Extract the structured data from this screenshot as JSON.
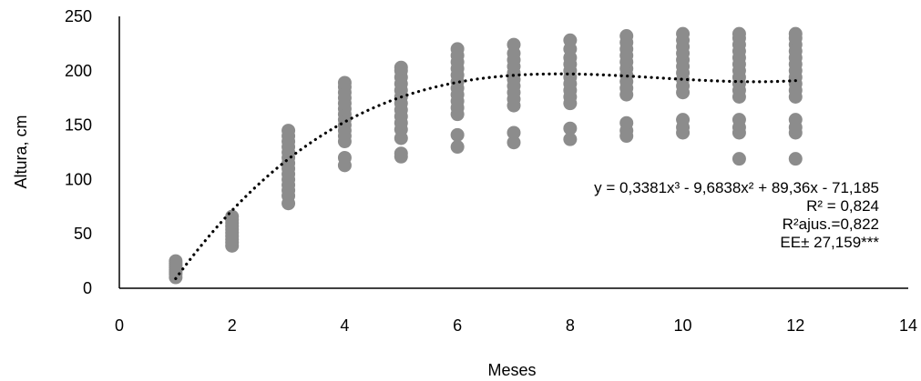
{
  "chart_data": {
    "type": "scatter",
    "xlabel": "Meses",
    "ylabel": "Altura, cm",
    "xlim": [
      0,
      14
    ],
    "ylim": [
      0,
      250
    ],
    "x_ticks": [
      0,
      2,
      4,
      6,
      8,
      10,
      12,
      14
    ],
    "y_ticks": [
      0,
      50,
      100,
      150,
      200,
      250
    ],
    "grid": false,
    "point_color": "#8c8c8c",
    "series": [
      {
        "points": [
          [
            1,
            10
          ],
          [
            1,
            13
          ],
          [
            1,
            15
          ],
          [
            1,
            17
          ],
          [
            1,
            19
          ],
          [
            1,
            21
          ],
          [
            1,
            23
          ],
          [
            1,
            25
          ],
          [
            2,
            39
          ],
          [
            2,
            42
          ],
          [
            2,
            45
          ],
          [
            2,
            48
          ],
          [
            2,
            51
          ],
          [
            2,
            54
          ],
          [
            2,
            57
          ],
          [
            2,
            60
          ],
          [
            2,
            63
          ],
          [
            2,
            66
          ],
          [
            3,
            78
          ],
          [
            3,
            85
          ],
          [
            3,
            90
          ],
          [
            3,
            95
          ],
          [
            3,
            100
          ],
          [
            3,
            105
          ],
          [
            3,
            110
          ],
          [
            3,
            115
          ],
          [
            3,
            120
          ],
          [
            3,
            125
          ],
          [
            3,
            130
          ],
          [
            3,
            135
          ],
          [
            3,
            140
          ],
          [
            3,
            145
          ],
          [
            4,
            113
          ],
          [
            4,
            120
          ],
          [
            4,
            135
          ],
          [
            4,
            140
          ],
          [
            4,
            145
          ],
          [
            4,
            150
          ],
          [
            4,
            155
          ],
          [
            4,
            160
          ],
          [
            4,
            165
          ],
          [
            4,
            170
          ],
          [
            4,
            175
          ],
          [
            4,
            180
          ],
          [
            4,
            185
          ],
          [
            4,
            189
          ],
          [
            5,
            121
          ],
          [
            5,
            124
          ],
          [
            5,
            138
          ],
          [
            5,
            146
          ],
          [
            5,
            152
          ],
          [
            5,
            158
          ],
          [
            5,
            164
          ],
          [
            5,
            170
          ],
          [
            5,
            176
          ],
          [
            5,
            182
          ],
          [
            5,
            188
          ],
          [
            5,
            194
          ],
          [
            5,
            200
          ],
          [
            5,
            203
          ],
          [
            6,
            130
          ],
          [
            6,
            141
          ],
          [
            6,
            160
          ],
          [
            6,
            166
          ],
          [
            6,
            172
          ],
          [
            6,
            178
          ],
          [
            6,
            184
          ],
          [
            6,
            190
          ],
          [
            6,
            196
          ],
          [
            6,
            202
          ],
          [
            6,
            208
          ],
          [
            6,
            214
          ],
          [
            6,
            220
          ],
          [
            7,
            134
          ],
          [
            7,
            143
          ],
          [
            7,
            168
          ],
          [
            7,
            174
          ],
          [
            7,
            180
          ],
          [
            7,
            186
          ],
          [
            7,
            192
          ],
          [
            7,
            198
          ],
          [
            7,
            204
          ],
          [
            7,
            210
          ],
          [
            7,
            216
          ],
          [
            7,
            224
          ],
          [
            8,
            137
          ],
          [
            8,
            147
          ],
          [
            8,
            170
          ],
          [
            8,
            176
          ],
          [
            8,
            182
          ],
          [
            8,
            188
          ],
          [
            8,
            194
          ],
          [
            8,
            200
          ],
          [
            8,
            206
          ],
          [
            8,
            212
          ],
          [
            8,
            220
          ],
          [
            8,
            228
          ],
          [
            9,
            140
          ],
          [
            9,
            145
          ],
          [
            9,
            152
          ],
          [
            9,
            178
          ],
          [
            9,
            184
          ],
          [
            9,
            190
          ],
          [
            9,
            196
          ],
          [
            9,
            202
          ],
          [
            9,
            208
          ],
          [
            9,
            214
          ],
          [
            9,
            220
          ],
          [
            9,
            226
          ],
          [
            9,
            232
          ],
          [
            10,
            143
          ],
          [
            10,
            148
          ],
          [
            10,
            155
          ],
          [
            10,
            180
          ],
          [
            10,
            186
          ],
          [
            10,
            192
          ],
          [
            10,
            198
          ],
          [
            10,
            204
          ],
          [
            10,
            210
          ],
          [
            10,
            216
          ],
          [
            10,
            222
          ],
          [
            10,
            228
          ],
          [
            10,
            234
          ],
          [
            11,
            119
          ],
          [
            11,
            143
          ],
          [
            11,
            148
          ],
          [
            11,
            155
          ],
          [
            11,
            176
          ],
          [
            11,
            182
          ],
          [
            11,
            188
          ],
          [
            11,
            194
          ],
          [
            11,
            200
          ],
          [
            11,
            206
          ],
          [
            11,
            212
          ],
          [
            11,
            218
          ],
          [
            11,
            224
          ],
          [
            11,
            230
          ],
          [
            11,
            234
          ],
          [
            12,
            119
          ],
          [
            12,
            143
          ],
          [
            12,
            148
          ],
          [
            12,
            155
          ],
          [
            12,
            176
          ],
          [
            12,
            182
          ],
          [
            12,
            188
          ],
          [
            12,
            194
          ],
          [
            12,
            200
          ],
          [
            12,
            206
          ],
          [
            12,
            212
          ],
          [
            12,
            218
          ],
          [
            12,
            224
          ],
          [
            12,
            230
          ],
          [
            12,
            234
          ]
        ]
      }
    ],
    "trendline": {
      "type": "polynomial",
      "coefficients": [
        0.3381,
        -9.6838,
        89.36,
        -71.185
      ],
      "x_range": [
        1,
        12
      ],
      "style": "dotted"
    },
    "annotations": [
      "y = 0,3381x³ - 9,6838x² + 89,36x - 71,185",
      "R² = 0,824",
      "R²ajus.=0,822",
      "EE± 27,159***"
    ]
  }
}
